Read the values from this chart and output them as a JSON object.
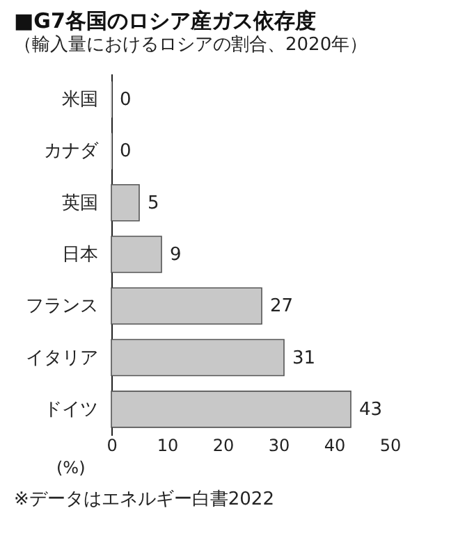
{
  "chart_data": {
    "type": "bar",
    "orientation": "horizontal",
    "title": "■G7各国のロシア産ガス依存度",
    "subtitle": "（輸入量におけるロシアの割合、2020年）",
    "categories": [
      "米国",
      "カナダ",
      "英国",
      "日本",
      "フランス",
      "イタリア",
      "ドイツ"
    ],
    "values": [
      0,
      0,
      5,
      9,
      27,
      31,
      43
    ],
    "color": "#c8c8c8",
    "xlabel": "(%)",
    "xlim": [
      0,
      50
    ],
    "xticks": [
      0,
      10,
      20,
      30,
      40,
      50
    ],
    "grid": false,
    "data_labels": true,
    "annotations": [
      "※データはエネルギー白書2022"
    ]
  }
}
